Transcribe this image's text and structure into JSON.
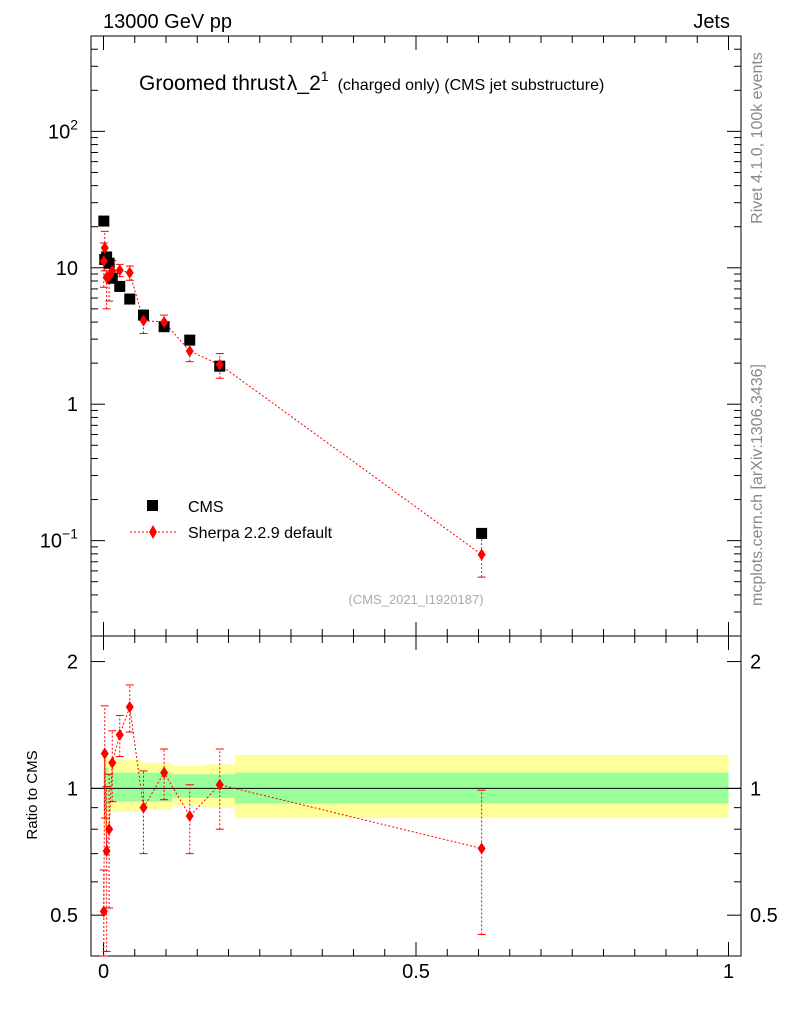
{
  "header": {
    "left": "13000 GeV pp",
    "right": "Jets"
  },
  "side_labels": {
    "upper": "Rivet 4.1.0,  100k events",
    "lower": "mcplots.cern.ch [arXiv:1306.3436]"
  },
  "chart_data": [
    {
      "type": "scatter",
      "panel": "main",
      "title_main": "Groomed thrust",
      "title_symbol": "λ_2",
      "title_superscript": "1",
      "title_suffix": "(charged only) (CMS jet substructure)",
      "analysis_id": "(CMS_2021_I1920187)",
      "yscale": "log",
      "ylim": [
        0.02,
        500
      ],
      "xlim": [
        -0.02,
        1.02
      ],
      "ytick_labels": [
        {
          "value": 100,
          "base": "10",
          "exp": "2"
        },
        {
          "value": 10,
          "base": "10",
          "exp": ""
        },
        {
          "value": 1,
          "base": "1",
          "exp": ""
        },
        {
          "value": 0.1,
          "base": "10",
          "exp": "−1"
        }
      ],
      "legend": {
        "position": "lower-left",
        "entries": [
          {
            "label": "CMS",
            "marker": "square",
            "color": "#000000"
          },
          {
            "label": "Sherpa 2.2.9 default",
            "marker": "diamond",
            "color": "#ff0000"
          }
        ]
      },
      "series": [
        {
          "name": "CMS",
          "color": "#000000",
          "marker": "square",
          "x": [
            0.0005,
            0.002,
            0.005,
            0.009,
            0.014,
            0.026,
            0.042,
            0.064,
            0.097,
            0.138,
            0.186,
            0.605
          ],
          "y": [
            22,
            11.5,
            12,
            10.8,
            8.4,
            7.3,
            5.9,
            4.5,
            3.7,
            2.95,
            1.9,
            0.113
          ]
        },
        {
          "name": "Sherpa 2.2.9 default",
          "color": "#ff0000",
          "marker": "diamond",
          "x": [
            0.0005,
            0.002,
            0.005,
            0.009,
            0.014,
            0.026,
            0.042,
            0.064,
            0.097,
            0.138,
            0.186,
            0.605
          ],
          "y": [
            11.2,
            14,
            8.5,
            8.7,
            9.5,
            9.6,
            9.2,
            4.1,
            4.0,
            2.45,
            1.95,
            0.079
          ],
          "yerr_low": [
            4.0,
            4.5,
            3.5,
            3.0,
            1.8,
            1.0,
            1.1,
            0.8,
            0.5,
            0.4,
            0.4,
            0.025
          ],
          "yerr_high": [
            4.0,
            4.5,
            3.5,
            3.0,
            1.8,
            1.0,
            1.1,
            0.8,
            0.5,
            0.4,
            0.4,
            0.025
          ]
        }
      ]
    },
    {
      "type": "scatter",
      "panel": "ratio",
      "ylabel": "Ratio to CMS",
      "yscale": "log",
      "ylim": [
        0.4,
        2.3
      ],
      "xlim": [
        -0.02,
        1.02
      ],
      "ytick_labels": [
        {
          "value": 2,
          "label": "2"
        },
        {
          "value": 1,
          "label": "1"
        },
        {
          "value": 0.5,
          "label": "0.5"
        }
      ],
      "xtick_labels": [
        {
          "value": 0,
          "label": "0"
        },
        {
          "value": 0.5,
          "label": "0.5"
        },
        {
          "value": 1,
          "label": "1"
        }
      ],
      "reference_line": 1,
      "bands": {
        "stat_color": "#99ff99",
        "total_color": "#ffff99",
        "bins": [
          {
            "x0": 0.0,
            "x1": 0.008,
            "inner": [
              0.88,
              1.12
            ],
            "outer": [
              0.78,
              1.22
            ]
          },
          {
            "x0": 0.008,
            "x1": 0.06,
            "inner": [
              0.93,
              1.09
            ],
            "outer": [
              0.88,
              1.17
            ]
          },
          {
            "x0": 0.06,
            "x1": 0.11,
            "inner": [
              0.93,
              1.09
            ],
            "outer": [
              0.89,
              1.15
            ]
          },
          {
            "x0": 0.11,
            "x1": 0.16,
            "inner": [
              0.95,
              1.08
            ],
            "outer": [
              0.91,
              1.13
            ]
          },
          {
            "x0": 0.16,
            "x1": 0.21,
            "inner": [
              0.95,
              1.08
            ],
            "outer": [
              0.9,
              1.14
            ]
          },
          {
            "x0": 0.21,
            "x1": 1.0,
            "inner": [
              0.92,
              1.09
            ],
            "outer": [
              0.85,
              1.2
            ]
          }
        ]
      },
      "series": [
        {
          "name": "Sherpa 2.2.9 default",
          "color": "#ff0000",
          "marker": "diamond",
          "x": [
            0.0005,
            0.002,
            0.005,
            0.009,
            0.014,
            0.026,
            0.042,
            0.064,
            0.097,
            0.138,
            0.186,
            0.605
          ],
          "y": [
            0.51,
            1.21,
            0.71,
            0.8,
            1.15,
            1.34,
            1.56,
            0.9,
            1.09,
            0.86,
            1.02,
            0.72
          ],
          "yerr_low": [
            0.13,
            0.36,
            0.3,
            0.28,
            0.22,
            0.15,
            0.2,
            0.2,
            0.15,
            0.16,
            0.22,
            0.27
          ],
          "yerr_high": [
            0.13,
            0.36,
            0.3,
            0.28,
            0.22,
            0.15,
            0.2,
            0.2,
            0.15,
            0.16,
            0.22,
            0.27
          ]
        }
      ]
    }
  ]
}
